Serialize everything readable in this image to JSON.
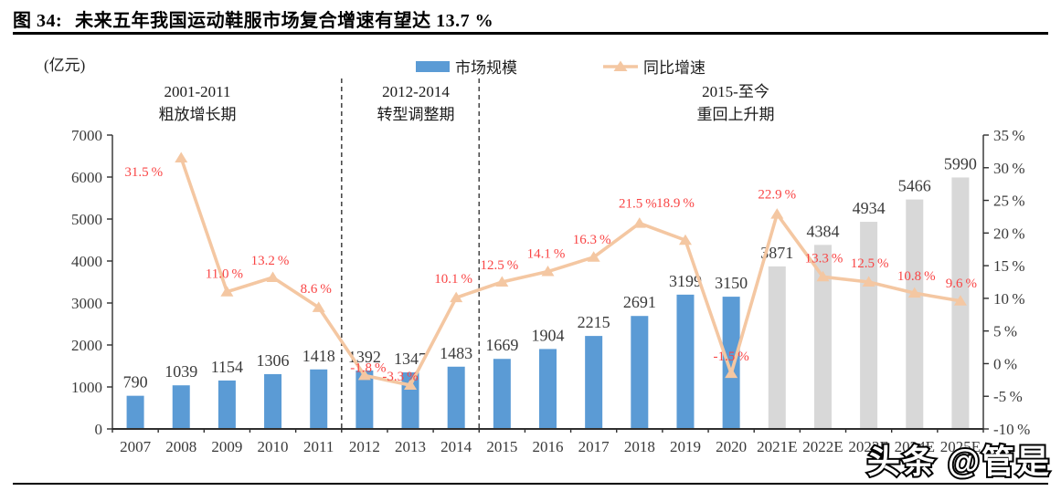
{
  "header": {
    "figure_label": "图 34:",
    "title_text": "未来五年我国运动鞋服市场复合增速有望达 13.7 %"
  },
  "watermark": "头条 @管是",
  "chart_data": {
    "type": "bar",
    "combo": "bar-line",
    "title": "图 34: 未来五年我国运动鞋服市场复合增速有望达 13.7 %",
    "unit_label": "(亿元)",
    "categories": [
      "2007",
      "2008",
      "2009",
      "2010",
      "2011",
      "2012",
      "2013",
      "2014",
      "2015",
      "2016",
      "2017",
      "2018",
      "2019",
      "2020",
      "2021E",
      "2022E",
      "2023E",
      "2024E",
      "2025E"
    ],
    "series": [
      {
        "name": "市场规模",
        "type": "bar",
        "axis": "left",
        "values": [
          790,
          1039,
          1154,
          1306,
          1418,
          1392,
          1347,
          1483,
          1669,
          1904,
          2215,
          2691,
          3199,
          3150,
          3871,
          4384,
          4934,
          5466,
          5990
        ],
        "actual_color": "#5B9BD5",
        "estimate_color": "#D8D8D8",
        "estimate_from_index": 14,
        "value_label_color": "#3a3a3a"
      },
      {
        "name": "同比增速",
        "type": "line",
        "axis": "right",
        "values": [
          null,
          31.5,
          11.0,
          13.2,
          8.6,
          -1.8,
          -3.3,
          10.1,
          12.5,
          14.1,
          16.3,
          21.5,
          18.9,
          -1.5,
          22.9,
          13.3,
          12.5,
          10.8,
          9.6
        ],
        "color": "#F4C7A2",
        "label_color": "#F94545",
        "label_suffix": "%"
      }
    ],
    "left_axis": {
      "min": 0,
      "max": 7000,
      "step": 1000
    },
    "right_axis": {
      "min": -10,
      "max": 35,
      "step": 5,
      "suffix": "%"
    },
    "legend": [
      {
        "label": "市场规模",
        "marker": "bar",
        "color": "#5B9BD5"
      },
      {
        "label": "同比增速",
        "marker": "line-triangle",
        "color": "#F4C7A2"
      }
    ],
    "period_annotations": [
      {
        "line1": "2001-2011",
        "line2": "粗放增长期"
      },
      {
        "line1": "2012-2014",
        "line2": "转型调整期"
      },
      {
        "line1": "2015-至今",
        "line2": "重回上升期"
      }
    ],
    "divider_after_index": [
      4,
      7
    ],
    "layout_hints": {
      "legend_position": "top",
      "grid": false,
      "annotation_centers_x": [
        216,
        455,
        805
      ],
      "growth_label_offsets": {
        "1": [
          -41,
          20
        ],
        "2": [
          -3,
          -15
        ],
        "3": [
          -3,
          -14
        ],
        "4": [
          -3,
          -16
        ],
        "5": [
          4,
          -4
        ],
        "6": [
          -11,
          -5
        ],
        "7": [
          -3,
          -16
        ],
        "8": [
          -3,
          -14
        ],
        "9": [
          -2,
          -15
        ],
        "10": [
          -2,
          -15
        ],
        "11": [
          -2,
          -17
        ],
        "12": [
          -11,
          -36
        ],
        "13": [
          0,
          -14
        ],
        "14": [
          0,
          -17
        ],
        "15": [
          1,
          -16
        ],
        "16": [
          1,
          -16
        ],
        "17": [
          2,
          -14
        ],
        "18": [
          1,
          -15
        ]
      }
    }
  }
}
